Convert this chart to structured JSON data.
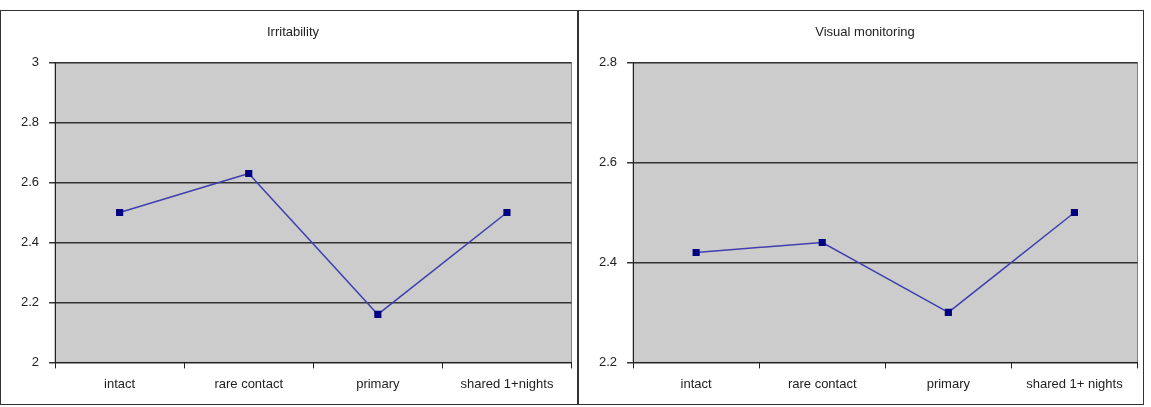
{
  "chart_data": [
    {
      "type": "line",
      "title": "Irritability",
      "categories": [
        "intact",
        "rare contact",
        "primary",
        "shared 1+nights"
      ],
      "series": [
        {
          "color": "#3f3fb0",
          "values": [
            2.5,
            2.63,
            2.16,
            2.5
          ]
        }
      ],
      "ylim": [
        2,
        3
      ],
      "yticks": [
        2,
        2.2,
        2.4,
        2.6,
        2.8,
        3
      ],
      "grid": "y",
      "marker": "square",
      "legend": false
    },
    {
      "type": "line",
      "title": "Visual monitoring",
      "categories": [
        "intact",
        "rare contact",
        "primary",
        "shared 1+ nights"
      ],
      "series": [
        {
          "color": "#3f3fb0",
          "values": [
            2.42,
            2.44,
            2.3,
            2.5
          ]
        }
      ],
      "ylim": [
        2.2,
        2.8
      ],
      "yticks": [
        2.2,
        2.4,
        2.6,
        2.8
      ],
      "grid": "y",
      "marker": "square",
      "legend": false
    }
  ]
}
